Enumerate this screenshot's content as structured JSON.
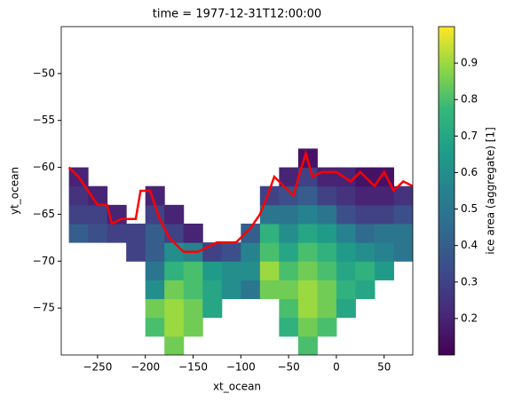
{
  "chart_data": {
    "type": "heatmap",
    "title": "time = 1977-12-31T12:00:00",
    "x_label": "xt_ocean",
    "y_label": "yt_ocean",
    "colorbar_label": "ice area  (aggregate) [1]",
    "colormap": "viridis",
    "xlim": [
      -288,
      80
    ],
    "ylim": [
      -80,
      -45
    ],
    "clim": [
      0.1,
      1.0
    ],
    "xticks": [
      {
        "value": -250,
        "label": "−250"
      },
      {
        "value": -200,
        "label": "−200"
      },
      {
        "value": -150,
        "label": "−150"
      },
      {
        "value": -100,
        "label": "−100"
      },
      {
        "value": -50,
        "label": "−50"
      },
      0,
      50
    ],
    "yticks": [
      {
        "value": -75,
        "label": "−75"
      },
      {
        "value": -70,
        "label": "−70"
      },
      {
        "value": -65,
        "label": "−65"
      },
      {
        "value": -60,
        "label": "−60"
      },
      {
        "value": -55,
        "label": "−55"
      },
      {
        "value": -50,
        "label": "−50"
      }
    ],
    "cticks": [
      0.2,
      0.3,
      0.4,
      0.5,
      0.6,
      0.7,
      0.8,
      0.9
    ],
    "x_edges": [
      -280,
      -260,
      -240,
      -220,
      -200,
      -180,
      -160,
      -140,
      -120,
      -100,
      -80,
      -60,
      -40,
      -20,
      0,
      20,
      40,
      60,
      80
    ],
    "y_edges": [
      -80,
      -78,
      -76,
      -74,
      -72,
      -70,
      -68,
      -66,
      -64,
      -62,
      -60,
      -58
    ],
    "z": [
      [
        null,
        null,
        null,
        null,
        null,
        0.85,
        null,
        null,
        null,
        null,
        null,
        null,
        0.8,
        null,
        null,
        null,
        null,
        null
      ],
      [
        null,
        null,
        null,
        null,
        0.8,
        0.9,
        0.85,
        null,
        null,
        null,
        null,
        0.75,
        0.85,
        0.8,
        null,
        null,
        null,
        null
      ],
      [
        null,
        null,
        null,
        null,
        0.85,
        0.9,
        0.85,
        0.7,
        null,
        null,
        null,
        0.8,
        0.9,
        0.85,
        0.7,
        null,
        null,
        null
      ],
      [
        null,
        null,
        null,
        null,
        0.6,
        0.85,
        0.8,
        0.7,
        0.6,
        0.5,
        0.85,
        0.85,
        0.9,
        0.85,
        0.75,
        0.7,
        null,
        null
      ],
      [
        null,
        null,
        null,
        null,
        0.5,
        0.75,
        0.8,
        0.65,
        0.6,
        0.6,
        0.9,
        0.8,
        0.85,
        0.8,
        0.7,
        0.75,
        0.65,
        null
      ],
      [
        null,
        null,
        null,
        0.3,
        0.4,
        0.6,
        0.55,
        0.3,
        0.35,
        0.55,
        0.8,
        0.7,
        0.8,
        0.75,
        0.65,
        0.6,
        0.55,
        0.5
      ],
      [
        0.4,
        0.35,
        0.3,
        0.3,
        0.4,
        0.3,
        0.2,
        null,
        null,
        0.4,
        0.75,
        0.6,
        0.7,
        0.65,
        0.55,
        0.45,
        0.5,
        0.5
      ],
      [
        0.3,
        0.3,
        0.2,
        null,
        0.3,
        0.2,
        null,
        null,
        null,
        null,
        0.5,
        0.5,
        0.55,
        0.5,
        0.35,
        0.3,
        0.3,
        0.35
      ],
      [
        0.25,
        0.2,
        null,
        null,
        0.2,
        null,
        null,
        null,
        null,
        null,
        0.3,
        0.35,
        0.4,
        0.3,
        0.25,
        0.2,
        0.2,
        0.25
      ],
      [
        0.2,
        null,
        null,
        null,
        null,
        null,
        null,
        null,
        null,
        null,
        null,
        0.2,
        0.3,
        0.2,
        0.2,
        0.15,
        0.15,
        null
      ],
      [
        null,
        null,
        null,
        null,
        null,
        null,
        null,
        null,
        null,
        null,
        null,
        null,
        0.15,
        null,
        null,
        null,
        null,
        null
      ]
    ],
    "contour": {
      "color": "#ff0000",
      "x": [
        -280,
        -270,
        -260,
        -250,
        -240,
        -235,
        -225,
        -210,
        -205,
        -195,
        -185,
        -175,
        -160,
        -145,
        -125,
        -105,
        -90,
        -80,
        -72,
        -65,
        -55,
        -45,
        -38,
        -32,
        -25,
        -15,
        0,
        15,
        25,
        40,
        50,
        60,
        70,
        80
      ],
      "y": [
        -60,
        -61,
        -62.5,
        -64,
        -64,
        -66,
        -65.5,
        -65.5,
        -62.5,
        -62.5,
        -65.5,
        -67.5,
        -69,
        -69,
        -68,
        -68,
        -66.5,
        -65,
        -63,
        -61,
        -62,
        -63,
        -60.5,
        -58.5,
        -61,
        -60.5,
        -60.5,
        -61.5,
        -60.5,
        -62,
        -60.5,
        -62.5,
        -61.5,
        -62
      ]
    }
  }
}
